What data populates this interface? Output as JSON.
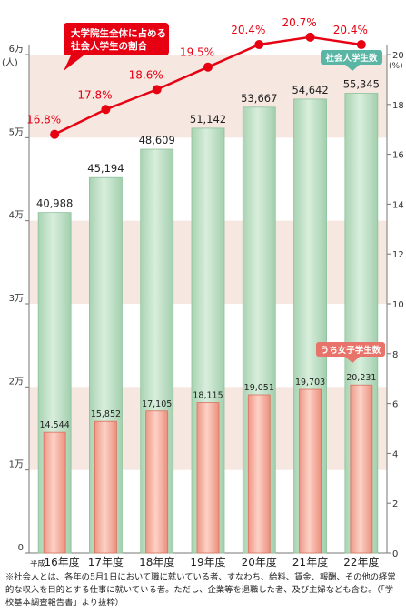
{
  "chart_data": {
    "type": "bar+line",
    "categories": [
      "16年度",
      "17年度",
      "18年度",
      "19年度",
      "20年度",
      "21年度",
      "22年度"
    ],
    "category_prefix": "平成",
    "series": [
      {
        "name": "社会人学生数",
        "kind": "bar",
        "axis": "left",
        "values": [
          40988,
          45194,
          48609,
          51142,
          53667,
          54642,
          55345
        ],
        "labels": [
          "40,988",
          "45,194",
          "48,609",
          "51,142",
          "53,667",
          "54,642",
          "55,345"
        ],
        "color": "#b8dcc0"
      },
      {
        "name": "うち女子学生数",
        "kind": "bar",
        "axis": "left",
        "values": [
          14544,
          15852,
          17105,
          18115,
          19051,
          19703,
          20231
        ],
        "labels": [
          "14,544",
          "15,852",
          "17,105",
          "18,115",
          "19,051",
          "19,703",
          "20,231"
        ],
        "color": "#f3a99a"
      },
      {
        "name": "大学院生全体に占める社会人学生の割合",
        "kind": "line",
        "axis": "right",
        "values": [
          16.8,
          17.8,
          18.6,
          19.5,
          20.4,
          20.7,
          20.4
        ],
        "labels": [
          "16.8%",
          "17.8%",
          "18.6%",
          "19.5%",
          "20.4%",
          "20.7%",
          "20.4%"
        ],
        "color": "#e60012"
      }
    ],
    "left_axis": {
      "min": 0,
      "max": 60000,
      "ticks": [
        0,
        10000,
        20000,
        30000,
        40000,
        50000,
        60000
      ],
      "tick_labels": [
        "0",
        "1万",
        "2万",
        "3万",
        "4万",
        "5万",
        "6万"
      ],
      "unit": "(人)"
    },
    "right_axis": {
      "min": 0,
      "max": 20,
      "ticks": [
        0,
        2,
        4,
        6,
        8,
        10,
        12,
        14,
        16,
        18,
        20
      ],
      "tick_labels": [
        "0",
        "2",
        "4",
        "6",
        "8",
        "10",
        "12",
        "14",
        "16",
        "18",
        "20"
      ],
      "unit": "(%)"
    },
    "callouts": {
      "line": [
        "大学院生全体に占める",
        "社会人学生の割合"
      ],
      "total": "社会人学生数",
      "female": "うち女子学生数"
    },
    "bands": "alternating shaded bands every 10,000"
  },
  "note": {
    "text": "※社会人とは、各年の5月1日において職に就いている者、すなわち、給料、賃金、報酬、その他の経常的な収入を目的とする仕事に就いている者。ただし、企業等を退職した者、及び主婦なども含む。（「学校基本調査報告書」より抜粋）"
  },
  "colors": {
    "band": "#f6e7e0",
    "bar_total": "#b8dcc0",
    "bar_total_edge": "#8cc29a",
    "bar_female": "#f3a99a",
    "bar_female_edge": "#d9725f",
    "line": "#e60012",
    "callout_total": "#5bb5a4",
    "callout_female": "#e8736a"
  }
}
